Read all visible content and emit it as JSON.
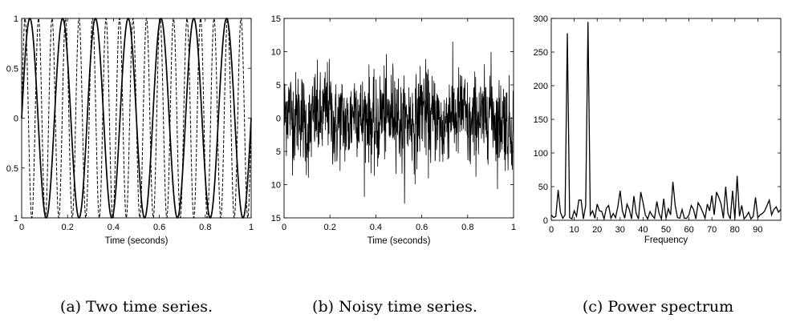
{
  "chart_data": [
    {
      "type": "line",
      "caption": "(a) Two time series.",
      "xlabel": "Time (seconds)",
      "ylabel": "",
      "xlim": [
        0,
        1
      ],
      "ylim": [
        -1,
        1
      ],
      "x_ticks": [
        0,
        0.2,
        0.4,
        0.6,
        0.8,
        1
      ],
      "x_tick_labels": [
        "0",
        "0.2",
        "0.4",
        "0.6",
        "0.8",
        "1"
      ],
      "y_ticks": [
        1,
        0.5,
        0,
        -0.5,
        -1
      ],
      "y_tick_labels": [
        "1",
        "0.5",
        "0",
        "0.5",
        "1"
      ],
      "series": [
        {
          "style": "solid",
          "frequency_hz": 7,
          "function": "sin",
          "amplitude": 1
        },
        {
          "style": "dashed",
          "frequency_hz": 17,
          "function": "sin",
          "amplitude": 1
        }
      ],
      "grid": false
    },
    {
      "type": "line",
      "caption": "(b) Noisy time series.",
      "xlabel": "Time (seconds)",
      "ylabel": "",
      "xlim": [
        0,
        1
      ],
      "ylim": [
        -15,
        15
      ],
      "x_ticks": [
        0,
        0.2,
        0.4,
        0.6,
        0.8,
        1
      ],
      "x_tick_labels": [
        "0",
        "0.2",
        "0.4",
        "0.6",
        "0.8",
        "1"
      ],
      "y_ticks": [
        15,
        10,
        5,
        0,
        -5,
        -10,
        -15
      ],
      "y_tick_labels": [
        "15",
        "10",
        "5",
        "0",
        "5",
        "10",
        "15"
      ],
      "series": [
        {
          "style": "solid",
          "description_values": "sum of 7 Hz and 17 Hz sines plus random noise",
          "samples": 1000,
          "approx_range": [
            -13.5,
            11.5
          ]
        }
      ],
      "grid": false
    },
    {
      "type": "line",
      "caption": "(c) Power spectrum",
      "xlabel": "Frequency",
      "ylabel": "",
      "xlim": [
        0,
        100
      ],
      "ylim": [
        0,
        300
      ],
      "x_ticks": [
        0,
        10,
        20,
        30,
        40,
        50,
        60,
        70,
        80,
        90
      ],
      "x_tick_labels": [
        "0",
        "10",
        "20",
        "30",
        "40",
        "50",
        "60",
        "70",
        "80",
        "90"
      ],
      "y_ticks": [
        0,
        50,
        100,
        150,
        200,
        250,
        300
      ],
      "y_tick_labels": [
        "0",
        "50",
        "100",
        "150",
        "200",
        "250",
        "300"
      ],
      "series": [
        {
          "style": "solid",
          "x": [
            0,
            1,
            2,
            3,
            4,
            5,
            6,
            7,
            8,
            9,
            10,
            11,
            12,
            13,
            14,
            15,
            16,
            17,
            18,
            19,
            20,
            21,
            22,
            23,
            24,
            25,
            26,
            27,
            28,
            29,
            30,
            31,
            32,
            33,
            34,
            35,
            36,
            37,
            38,
            39,
            40,
            41,
            42,
            43,
            44,
            45,
            46,
            47,
            48,
            49,
            50,
            51,
            52,
            53,
            54,
            55,
            56,
            57,
            58,
            59,
            60,
            61,
            62,
            63,
            64,
            65,
            66,
            67,
            68,
            69,
            70,
            71,
            72,
            73,
            74,
            75,
            76,
            77,
            78,
            79,
            80,
            81,
            82,
            83,
            84,
            85,
            86,
            87,
            88,
            89,
            90,
            91,
            92,
            93,
            94,
            95,
            96,
            97,
            98,
            99,
            100
          ],
          "y": [
            8,
            4,
            6,
            45,
            12,
            3,
            8,
            278,
            4,
            2,
            14,
            6,
            30,
            30,
            2,
            22,
            295,
            8,
            14,
            3,
            24,
            14,
            13,
            2,
            18,
            22,
            3,
            10,
            4,
            20,
            44,
            14,
            3,
            24,
            16,
            2,
            36,
            10,
            2,
            42,
            26,
            8,
            2,
            13,
            7,
            3,
            28,
            10,
            2,
            32,
            3,
            17,
            8,
            57,
            22,
            4,
            3,
            16,
            3,
            3,
            8,
            22,
            16,
            2,
            26,
            20,
            12,
            3,
            24,
            14,
            37,
            8,
            42,
            34,
            24,
            3,
            50,
            10,
            2,
            44,
            2,
            66,
            6,
            22,
            2,
            6,
            12,
            2,
            6,
            34,
            4,
            8,
            10,
            14,
            22,
            30,
            8,
            16,
            20,
            12,
            16
          ]
        }
      ],
      "grid": false
    }
  ]
}
